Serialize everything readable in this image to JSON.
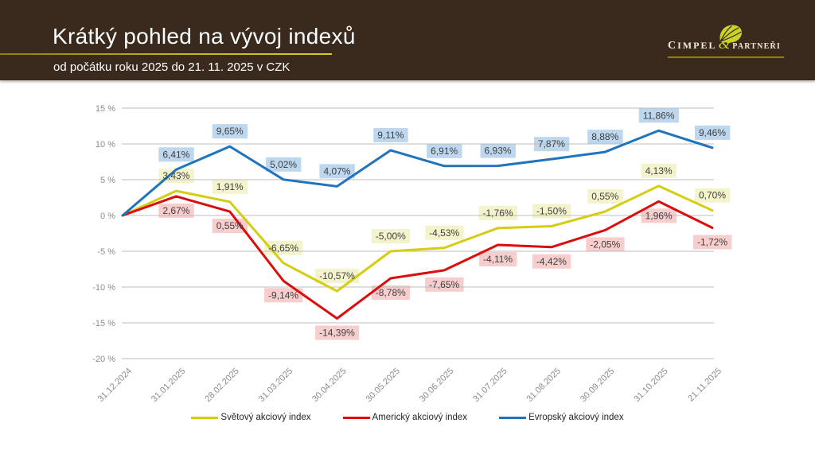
{
  "header": {
    "title": "Krátký pohled na vývoj indexů",
    "subtitle": "od počátku roku 2025 do 21. 11. 2025 v CZK",
    "background_color": "#3a2a1d",
    "accent_color": "#b7ab0b"
  },
  "logo": {
    "name": "CIMPEL & PARTNEŘI",
    "cimpel": "Cimpel",
    "amp": "&",
    "partneri": "partneři",
    "leaf_color": "#c9d32b",
    "text_color": "#f0e9d6"
  },
  "chart_data": {
    "type": "line",
    "x": [
      "31.12.2024",
      "31.01.2025",
      "28.02.2025",
      "31.03.2025",
      "30.04.2025",
      "30.05.2025",
      "30.06.2025",
      "31.07.2025",
      "31.08.2025",
      "30.09.2025",
      "31.10.2025",
      "21.11.2025"
    ],
    "series": [
      {
        "name": "Světový akciový index",
        "color": "#d4cd12",
        "label_bg": "#f4f4cc",
        "label_side": "above",
        "values": [
          0,
          3.43,
          1.91,
          -6.65,
          -10.57,
          -5.0,
          -4.53,
          -1.76,
          -1.5,
          0.55,
          4.13,
          0.7
        ],
        "labels": [
          "",
          "3,43%",
          "1,91%",
          "-6,65%",
          "-10,57%",
          "-5,00%",
          "-4,53%",
          "-1,76%",
          "-1,50%",
          "0,55%",
          "4,13%",
          "0,70%"
        ]
      },
      {
        "name": "Americký akciový index",
        "color": "#dc0d0d",
        "label_bg": "#f8cdcd",
        "label_side": "below",
        "values": [
          0,
          2.67,
          0.55,
          -9.14,
          -14.39,
          -8.78,
          -7.65,
          -4.11,
          -4.42,
          -2.05,
          1.96,
          -1.72
        ],
        "labels": [
          "",
          "2,67%",
          "0,55%",
          "-9,14%",
          "-14,39%",
          "-8,78%",
          "-7,65%",
          "-4,11%",
          "-4,42%",
          "-2,05%",
          "1,96%",
          "-1,72%"
        ]
      },
      {
        "name": "Evropský akciový index",
        "color": "#2074be",
        "label_bg": "#bdd7ee",
        "label_side": "above",
        "values": [
          0,
          6.41,
          9.65,
          5.02,
          4.07,
          9.11,
          6.91,
          6.93,
          7.87,
          8.88,
          11.86,
          9.46
        ],
        "labels": [
          "",
          "6,41%",
          "9,65%",
          "5,02%",
          "4,07%",
          "9,11%",
          "6,91%",
          "6,93%",
          "7,87%",
          "8,88%",
          "11,86%",
          "9,46%"
        ]
      }
    ],
    "y_ticks": [
      {
        "value": 15,
        "label": "15 %"
      },
      {
        "value": 10,
        "label": "10 %"
      },
      {
        "value": 5,
        "label": "5 %"
      },
      {
        "value": 0,
        "label": "0 %"
      },
      {
        "value": -5,
        "label": "-5 %"
      },
      {
        "value": -10,
        "label": "-10 %"
      },
      {
        "value": -15,
        "label": "-15 %"
      },
      {
        "value": -20,
        "label": "-20 %"
      }
    ],
    "ylim": [
      -20,
      15
    ],
    "grid": true,
    "legend_position": "bottom",
    "grid_color": "#bdbdbd",
    "axis_text_color": "#8c8c8c",
    "label_text_color": "#3f3f3f"
  }
}
